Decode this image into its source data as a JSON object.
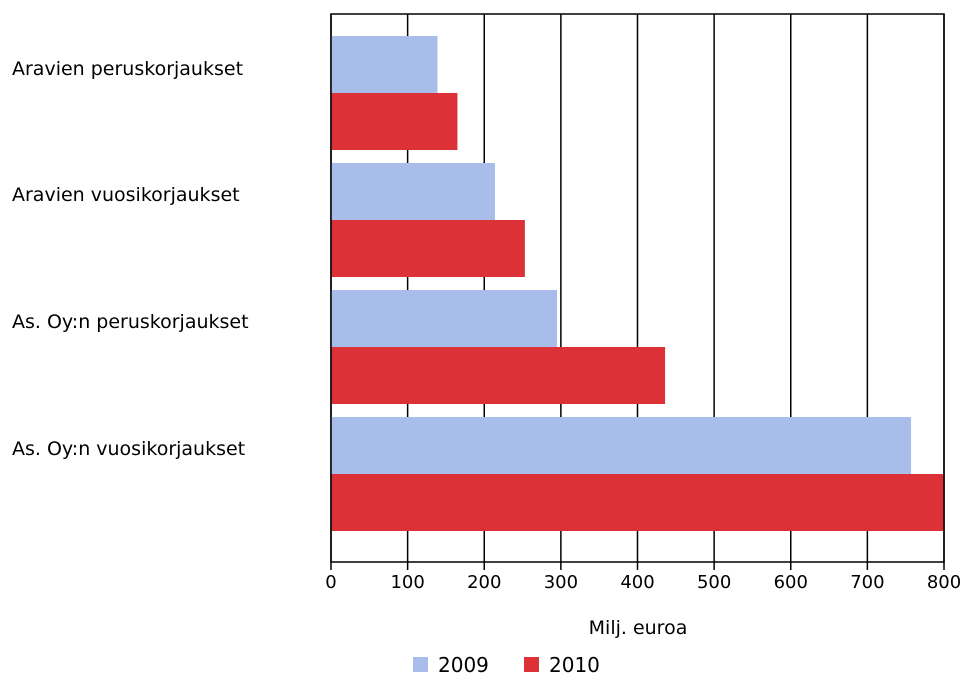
{
  "chart_data": {
    "type": "bar",
    "orientation": "horizontal",
    "categories": [
      "Aravien peruskorjaukset",
      "Aravien vuosikorjaukset",
      "As. Oy:n peruskorjaukset",
      "As. Oy:n vuosikorjaukset"
    ],
    "series": [
      {
        "name": "2009",
        "color": "#a9bdeb",
        "values": [
          139,
          214,
          295,
          757
        ]
      },
      {
        "name": "2010",
        "color": "#dc3237",
        "values": [
          165,
          253,
          436,
          800
        ]
      }
    ],
    "xlabel": "Milj. euroa",
    "ylabel": "",
    "xlim": [
      0,
      800
    ],
    "xticks": [
      0,
      100,
      200,
      300,
      400,
      500,
      600,
      700,
      800
    ],
    "grid": true,
    "legend_position": "bottom"
  }
}
